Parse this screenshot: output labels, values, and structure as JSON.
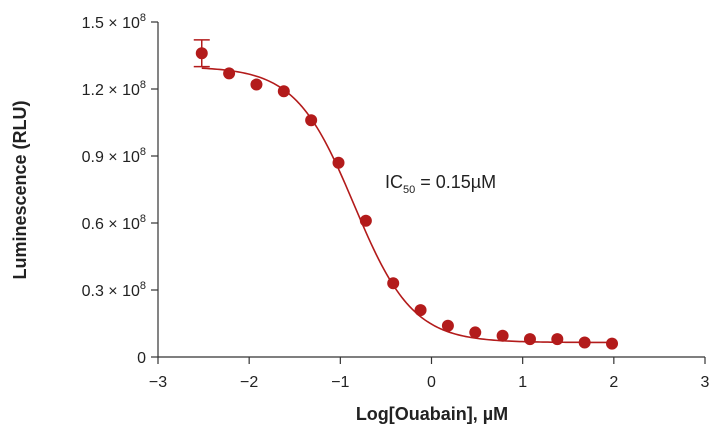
{
  "chart_data": {
    "type": "scatter",
    "xlabel": "Log[Ouabain], µM",
    "ylabel": "Luminescence (RLU)",
    "xlim": [
      -3,
      3
    ],
    "ylim": [
      0,
      150000000
    ],
    "x_ticks": [
      {
        "value": -3,
        "label": "−3"
      },
      {
        "value": -2,
        "label": "−2"
      },
      {
        "value": -1,
        "label": "−1"
      },
      {
        "value": 0,
        "label": "0"
      },
      {
        "value": 1,
        "label": "1"
      },
      {
        "value": 2,
        "label": "2"
      },
      {
        "value": 3,
        "label": "3"
      }
    ],
    "y_ticks": [
      {
        "value": 0,
        "mantissa": "0",
        "exponent": ""
      },
      {
        "value": 30000000,
        "mantissa": "0.3 × 10",
        "exponent": "8"
      },
      {
        "value": 60000000,
        "mantissa": "0.6 × 10",
        "exponent": "8"
      },
      {
        "value": 90000000,
        "mantissa": "0.9 × 10",
        "exponent": "8"
      },
      {
        "value": 120000000,
        "mantissa": "1.2 × 10",
        "exponent": "8"
      },
      {
        "value": 150000000,
        "mantissa": "1.5 × 10",
        "exponent": "8"
      }
    ],
    "points": [
      {
        "x": -2.52,
        "y": 136000000,
        "err": 6000000
      },
      {
        "x": -2.22,
        "y": 127000000
      },
      {
        "x": -1.92,
        "y": 122000000
      },
      {
        "x": -1.62,
        "y": 119000000
      },
      {
        "x": -1.32,
        "y": 106000000
      },
      {
        "x": -1.02,
        "y": 87000000
      },
      {
        "x": -0.72,
        "y": 61000000
      },
      {
        "x": -0.42,
        "y": 33000000
      },
      {
        "x": -0.12,
        "y": 21000000
      },
      {
        "x": 0.18,
        "y": 14000000
      },
      {
        "x": 0.48,
        "y": 11000000
      },
      {
        "x": 0.78,
        "y": 9500000
      },
      {
        "x": 1.08,
        "y": 8000000
      },
      {
        "x": 1.38,
        "y": 8000000
      },
      {
        "x": 1.68,
        "y": 6500000
      },
      {
        "x": 1.98,
        "y": 6000000
      }
    ],
    "fit": {
      "model": "4PL",
      "top": 130000000,
      "bottom": 6500000,
      "log_ic50": -0.85,
      "hill": 1.35,
      "x_range": [
        -2.52,
        1.98
      ]
    },
    "annotation": {
      "prefix": "IC",
      "subscript": "50",
      "suffix": " = 0.15µM"
    },
    "colors": {
      "series": "#b31b1b",
      "axis": "#333333",
      "text": "#222222"
    },
    "grid": false
  }
}
